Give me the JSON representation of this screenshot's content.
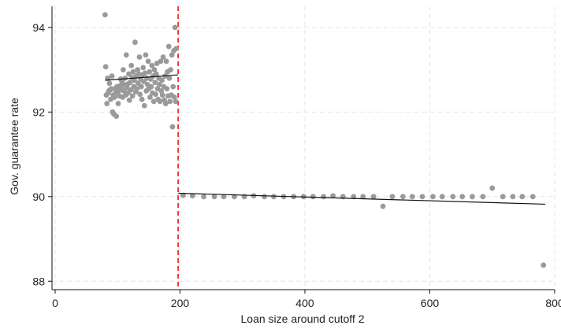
{
  "chart_data": {
    "type": "scatter",
    "xlabel": "Loan size around cutoff 2",
    "ylabel": "Gov. guarantee rate",
    "xlim": [
      -5,
      800
    ],
    "ylim": [
      87.8,
      94.5
    ],
    "xticks": [
      0,
      200,
      400,
      600,
      800
    ],
    "yticks": [
      88,
      90,
      92,
      94
    ],
    "grid": true,
    "cutoff": {
      "x": 197,
      "color": "#e8312f",
      "style": "dashed"
    },
    "points_color": "#9a9a9a",
    "fit_lines": [
      {
        "x": [
          80,
          197
        ],
        "y": [
          92.75,
          92.88
        ]
      },
      {
        "x": [
          197,
          785
        ],
        "y": [
          90.08,
          89.82
        ]
      }
    ],
    "series": [
      {
        "values": [
          [
            80,
            94.3
          ],
          [
            81,
            93.07
          ],
          [
            82,
            92.4
          ],
          [
            83,
            92.2
          ],
          [
            84,
            92.8
          ],
          [
            85,
            92.45
          ],
          [
            86,
            92.5
          ],
          [
            87,
            92.68
          ],
          [
            88,
            92.52
          ],
          [
            89,
            92.3
          ],
          [
            90,
            92.55
          ],
          [
            91,
            92.85
          ],
          [
            92,
            92.0
          ],
          [
            93,
            92.4
          ],
          [
            94,
            91.95
          ],
          [
            95,
            92.35
          ],
          [
            96,
            92.55
          ],
          [
            97,
            92.45
          ],
          [
            98,
            91.9
          ],
          [
            99,
            92.6
          ],
          [
            100,
            92.48
          ],
          [
            101,
            92.2
          ],
          [
            102,
            92.5
          ],
          [
            103,
            92.38
          ],
          [
            104,
            92.62
          ],
          [
            105,
            92.78
          ],
          [
            106,
            92.55
          ],
          [
            107,
            92.72
          ],
          [
            108,
            92.35
          ],
          [
            109,
            93.0
          ],
          [
            110,
            92.5
          ],
          [
            111,
            92.64
          ],
          [
            112,
            92.8
          ],
          [
            113,
            92.4
          ],
          [
            114,
            93.35
          ],
          [
            115,
            92.58
          ],
          [
            116,
            92.66
          ],
          [
            117,
            92.45
          ],
          [
            118,
            92.9
          ],
          [
            119,
            92.28
          ],
          [
            120,
            92.7
          ],
          [
            121,
            92.52
          ],
          [
            122,
            93.1
          ],
          [
            123,
            92.82
          ],
          [
            124,
            92.38
          ],
          [
            125,
            92.95
          ],
          [
            126,
            92.6
          ],
          [
            127,
            92.75
          ],
          [
            128,
            93.65
          ],
          [
            129,
            92.48
          ],
          [
            130,
            92.85
          ],
          [
            131,
            92.55
          ],
          [
            132,
            93.0
          ],
          [
            133,
            92.68
          ],
          [
            134,
            92.9
          ],
          [
            135,
            93.3
          ],
          [
            136,
            92.42
          ],
          [
            137,
            92.78
          ],
          [
            138,
            92.6
          ],
          [
            139,
            92.3
          ],
          [
            140,
            92.88
          ],
          [
            141,
            93.05
          ],
          [
            142,
            92.72
          ],
          [
            143,
            92.15
          ],
          [
            144,
            92.92
          ],
          [
            145,
            93.35
          ],
          [
            146,
            92.5
          ],
          [
            147,
            92.8
          ],
          [
            148,
            92.65
          ],
          [
            149,
            93.2
          ],
          [
            150,
            92.55
          ],
          [
            151,
            92.95
          ],
          [
            152,
            92.35
          ],
          [
            153,
            92.78
          ],
          [
            154,
            92.6
          ],
          [
            155,
            93.1
          ],
          [
            156,
            92.45
          ],
          [
            157,
            92.85
          ],
          [
            158,
            92.25
          ],
          [
            159,
            93.0
          ],
          [
            160,
            92.7
          ],
          [
            161,
            92.42
          ],
          [
            162,
            92.9
          ],
          [
            163,
            93.15
          ],
          [
            164,
            92.55
          ],
          [
            165,
            92.3
          ],
          [
            166,
            92.8
          ],
          [
            167,
            92.65
          ],
          [
            168,
            92.25
          ],
          [
            169,
            93.2
          ],
          [
            170,
            92.5
          ],
          [
            171,
            92.75
          ],
          [
            172,
            92.4
          ],
          [
            173,
            93.3
          ],
          [
            174,
            92.6
          ],
          [
            175,
            92.28
          ],
          [
            176,
            92.85
          ],
          [
            177,
            92.2
          ],
          [
            178,
            93.2
          ],
          [
            179,
            92.55
          ],
          [
            180,
            92.95
          ],
          [
            181,
            92.38
          ],
          [
            182,
            93.55
          ],
          [
            183,
            92.8
          ],
          [
            184,
            92.25
          ],
          [
            185,
            93.0
          ],
          [
            186,
            92.4
          ],
          [
            187,
            93.35
          ],
          [
            188,
            91.65
          ],
          [
            189,
            92.6
          ],
          [
            190,
            93.45
          ],
          [
            191,
            92.35
          ],
          [
            192,
            94.0
          ],
          [
            193,
            92.25
          ],
          [
            194,
            93.5
          ],
          [
            205,
            90.03
          ],
          [
            220,
            90.02
          ],
          [
            238,
            90.0
          ],
          [
            255,
            90.0
          ],
          [
            270,
            90.0
          ],
          [
            287,
            90.0
          ],
          [
            303,
            90.0
          ],
          [
            318,
            90.02
          ],
          [
            335,
            90.0
          ],
          [
            350,
            90.0
          ],
          [
            366,
            90.0
          ],
          [
            382,
            90.0
          ],
          [
            398,
            90.0
          ],
          [
            413,
            90.0
          ],
          [
            430,
            90.0
          ],
          [
            445,
            90.02
          ],
          [
            461,
            90.0
          ],
          [
            478,
            90.0
          ],
          [
            493,
            90.0
          ],
          [
            510,
            90.0
          ],
          [
            525,
            89.77
          ],
          [
            540,
            90.0
          ],
          [
            557,
            90.0
          ],
          [
            572,
            90.0
          ],
          [
            588,
            90.0
          ],
          [
            605,
            90.0
          ],
          [
            620,
            90.0
          ],
          [
            637,
            90.0
          ],
          [
            652,
            90.0
          ],
          [
            668,
            90.0
          ],
          [
            685,
            90.0
          ],
          [
            700,
            90.2
          ],
          [
            717,
            90.0
          ],
          [
            733,
            90.0
          ],
          [
            748,
            90.0
          ],
          [
            765,
            90.0
          ],
          [
            782,
            88.38
          ]
        ]
      }
    ]
  }
}
